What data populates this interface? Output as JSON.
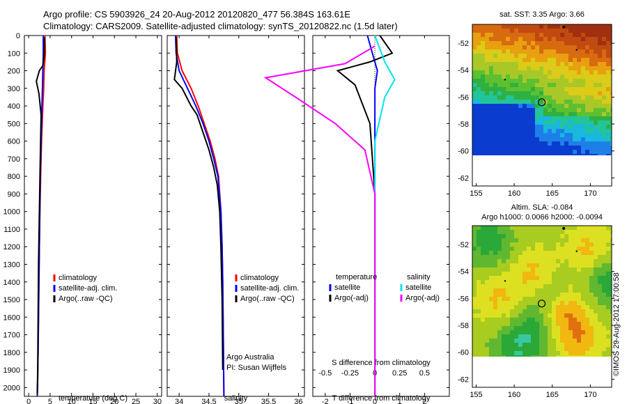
{
  "title_line1": "Argo profile: CS 5903926_24 20-Aug-2012 20120820_477 56.384S 163.61E",
  "title_line2": "Climatology: CARS2009. Satellite-adjusted climatology: synTS_20120822.nc (1.5d later)",
  "map1_title": "sat. SST: 3.35 Argo: 3.66",
  "map2_title_line1": "Altim. SLA: -0.084",
  "map2_title_line2": "Argo h1000: 0.0066 h2000: -0.0094",
  "watermark": "©IMOS 29-Aug-2012 17:00:58",
  "colors": {
    "climatology": "#ff0000",
    "satellite": "#0000ff",
    "argo": "#000000",
    "sat_salinity": "#00e5ee",
    "argo_adj_salinity": "#ff00ff"
  },
  "chart_data": [
    {
      "type": "line",
      "panel": "temperature",
      "xlabel": "temperature (deg C)",
      "ylabel": "",
      "xlim": [
        -1,
        31
      ],
      "ylim": [
        2050,
        0
      ],
      "y_inverted": true,
      "xticks": [
        0,
        5,
        10,
        15,
        20,
        25,
        30
      ],
      "yticks": [
        0,
        100,
        200,
        300,
        400,
        500,
        600,
        700,
        800,
        900,
        1000,
        1100,
        1200,
        1300,
        1400,
        1500,
        1600,
        1700,
        1800,
        1900,
        2000
      ],
      "legend_position": "center",
      "legend": [
        "climatology",
        "satellite-adj. clim.",
        "Argo(..raw -QC)"
      ],
      "series": [
        {
          "name": "climatology",
          "color": "#ff0000",
          "x": [
            3.8,
            3.9,
            3.6,
            3.5,
            3.3,
            3.0,
            2.8,
            2.6,
            2.5,
            2.4,
            2.3,
            2.2,
            2.1,
            2.0
          ],
          "y": [
            0,
            100,
            200,
            300,
            400,
            600,
            800,
            1000,
            1200,
            1400,
            1600,
            1800,
            1950,
            2050
          ]
        },
        {
          "name": "satellite-adj. clim.",
          "color": "#0000ff",
          "x": [
            3.4,
            3.4,
            3.3,
            3.2,
            3.1,
            2.9,
            2.7,
            2.6,
            2.5,
            2.4,
            2.3,
            2.2,
            2.1,
            2.0
          ],
          "y": [
            0,
            100,
            200,
            300,
            400,
            600,
            800,
            1000,
            1200,
            1400,
            1600,
            1800,
            1950,
            2050
          ]
        },
        {
          "name": "Argo(..raw -QC)",
          "color": "#000000",
          "x": [
            3.7,
            3.6,
            3.3,
            2.5,
            1.8,
            2.4,
            2.9,
            2.7,
            2.5,
            2.3,
            2.2,
            2.1,
            2.0
          ],
          "y": [
            10,
            120,
            170,
            200,
            260,
            330,
            450,
            700,
            1000,
            1300,
            1600,
            1900,
            2040
          ]
        }
      ]
    },
    {
      "type": "line",
      "panel": "salinity",
      "xlabel": "salinity",
      "ylabel": "",
      "xlim": [
        33.8,
        36.1
      ],
      "ylim": [
        2050,
        0
      ],
      "y_inverted": true,
      "xticks": [
        34,
        34.5,
        35,
        35.5,
        36
      ],
      "legend_position": "center",
      "legend": [
        "climatology",
        "satellite-adj. clim.",
        "Argo(..raw -QC)"
      ],
      "annotations": [
        "Argo Australia",
        "PI: Susan Wijffels"
      ],
      "series": [
        {
          "name": "climatology",
          "color": "#ff0000",
          "x": [
            33.96,
            33.97,
            34.05,
            34.2,
            34.32,
            34.42,
            34.52,
            34.6,
            34.66,
            34.7,
            34.72,
            34.73,
            34.74,
            34.75
          ],
          "y": [
            0,
            100,
            200,
            300,
            400,
            500,
            600,
            700,
            800,
            1000,
            1200,
            1400,
            1700,
            2050
          ]
        },
        {
          "name": "satellite-adj. clim.",
          "color": "#0000ff",
          "x": [
            33.94,
            33.95,
            34.0,
            34.14,
            34.28,
            34.4,
            34.5,
            34.58,
            34.65,
            34.7,
            34.72,
            34.73,
            34.74,
            34.75
          ],
          "y": [
            0,
            100,
            200,
            300,
            400,
            500,
            600,
            700,
            800,
            1000,
            1200,
            1400,
            1700,
            2050
          ]
        },
        {
          "name": "Argo(..raw -QC)",
          "color": "#000000",
          "x": [
            33.95,
            33.96,
            33.92,
            34.05,
            34.2,
            34.3,
            34.4,
            34.5,
            34.58,
            34.64,
            34.68,
            34.7,
            34.72,
            34.73
          ],
          "y": [
            10,
            150,
            250,
            300,
            400,
            450,
            550,
            650,
            750,
            850,
            1000,
            1200,
            1500,
            1900
          ]
        }
      ]
    },
    {
      "type": "line",
      "panel": "differences",
      "xlabel": "T difference from climatology",
      "xlabel_top": "S difference from climatology",
      "xlim": [
        -2.5,
        3
      ],
      "ylim": [
        2050,
        0
      ],
      "y_inverted": true,
      "xticks": [
        -2,
        -1,
        0,
        1,
        2
      ],
      "xticks_salinity": [
        -0.5,
        -0.25,
        0,
        0.25,
        0.5
      ],
      "legend_position": "center",
      "legend_groups": [
        {
          "title": "temperature",
          "entries": [
            "satellite",
            "Argo(-adj)"
          ]
        },
        {
          "title": "salinity",
          "entries": [
            "satellite",
            "Argo(-adj)"
          ]
        }
      ],
      "series": [
        {
          "name": "temperature satellite",
          "color": "#0000ff",
          "x": [
            -0.3,
            -0.1,
            0.1,
            0.0,
            0.0,
            0.0,
            0.0,
            0.0
          ],
          "y": [
            0,
            100,
            200,
            300,
            600,
            1000,
            1500,
            2050
          ]
        },
        {
          "name": "temperature Argo(-adj)",
          "color": "#000000",
          "x": [
            0.2,
            0.7,
            -0.2,
            -1.5,
            -0.8,
            -0.2,
            0.0,
            0.0,
            0.0
          ],
          "y": [
            0,
            100,
            150,
            200,
            280,
            500,
            900,
            1400,
            2050
          ]
        },
        {
          "name": "salinity satellite",
          "color": "#00e5ee",
          "x": [
            0.0,
            0.1,
            0.2,
            0.1,
            0.0,
            0.0,
            0.0
          ],
          "y": [
            0,
            150,
            250,
            350,
            600,
            1000,
            2050
          ]
        },
        {
          "name": "salinity Argo(-adj)",
          "color": "#ff00ff",
          "x": [
            0.0,
            -0.3,
            -1.1,
            -0.8,
            -0.4,
            -0.1,
            0.0,
            0.0
          ],
          "y": [
            60,
            160,
            240,
            350,
            500,
            650,
            900,
            2050
          ]
        }
      ]
    },
    {
      "type": "heatmap",
      "panel": "SST map",
      "title": "sat. SST: 3.35 Argo: 3.66",
      "xlim": [
        154.5,
        172.8
      ],
      "ylim": [
        -62.6,
        -50.6
      ],
      "xticks": [
        155,
        160,
        165,
        170
      ],
      "yticks": [
        -52,
        -54,
        -56,
        -58,
        -60,
        -62
      ],
      "marker": {
        "lon": 163.61,
        "lat": -56.384
      }
    },
    {
      "type": "heatmap",
      "panel": "SLA map",
      "title": "Altim. SLA: -0.084",
      "xlim": [
        154.5,
        172.8
      ],
      "ylim": [
        -62.6,
        -50.6
      ],
      "xticks": [
        155,
        160,
        165,
        170
      ],
      "yticks": [
        -52,
        -54,
        -56,
        -58,
        -60,
        -62
      ],
      "marker": {
        "lon": 163.61,
        "lat": -56.384
      }
    }
  ]
}
